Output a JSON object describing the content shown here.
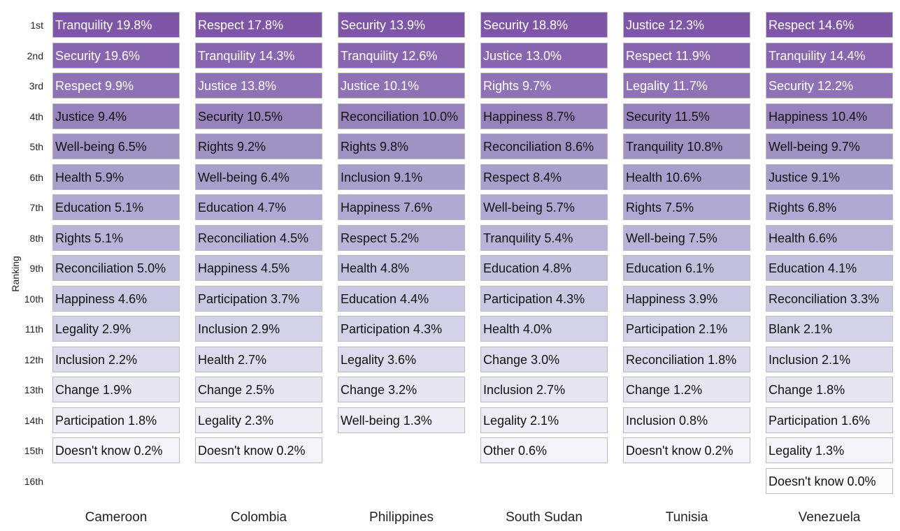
{
  "chart_data": {
    "type": "table",
    "title": "",
    "ylabel": "Ranking",
    "ranks": [
      "1st",
      "2nd",
      "3rd",
      "4th",
      "5th",
      "6th",
      "7th",
      "8th",
      "9th",
      "10th",
      "11th",
      "12th",
      "13th",
      "14th",
      "15th",
      "16th"
    ],
    "countries": [
      "Cameroon",
      "Colombia",
      "Philippines",
      "South Sudan",
      "Tunisia",
      "Venezuela"
    ],
    "series": [
      {
        "name": "Cameroon",
        "items": [
          {
            "label": "Tranquility",
            "value": 19.8
          },
          {
            "label": "Security",
            "value": 19.6
          },
          {
            "label": "Respect",
            "value": 9.9
          },
          {
            "label": "Justice",
            "value": 9.4
          },
          {
            "label": "Well-being",
            "value": 6.5
          },
          {
            "label": "Health",
            "value": 5.9
          },
          {
            "label": "Education",
            "value": 5.1
          },
          {
            "label": "Rights",
            "value": 5.1
          },
          {
            "label": "Reconciliation",
            "value": 5.0
          },
          {
            "label": "Happiness",
            "value": 4.6
          },
          {
            "label": "Legality",
            "value": 2.9
          },
          {
            "label": "Inclusion",
            "value": 2.2
          },
          {
            "label": "Change",
            "value": 1.9
          },
          {
            "label": "Participation",
            "value": 1.8
          },
          {
            "label": "Doesn't know",
            "value": 0.2
          }
        ]
      },
      {
        "name": "Colombia",
        "items": [
          {
            "label": "Respect",
            "value": 17.8
          },
          {
            "label": "Tranquility",
            "value": 14.3
          },
          {
            "label": "Justice",
            "value": 13.8
          },
          {
            "label": "Security",
            "value": 10.5
          },
          {
            "label": "Rights",
            "value": 9.2
          },
          {
            "label": "Well-being",
            "value": 6.4
          },
          {
            "label": "Education",
            "value": 4.7
          },
          {
            "label": "Reconciliation",
            "value": 4.5
          },
          {
            "label": "Happiness",
            "value": 4.5
          },
          {
            "label": "Participation",
            "value": 3.7
          },
          {
            "label": "Inclusion",
            "value": 2.9
          },
          {
            "label": "Health",
            "value": 2.7
          },
          {
            "label": "Change",
            "value": 2.5
          },
          {
            "label": "Legality",
            "value": 2.3
          },
          {
            "label": "Doesn't know",
            "value": 0.2
          }
        ]
      },
      {
        "name": "Philippines",
        "items": [
          {
            "label": "Security",
            "value": 13.9
          },
          {
            "label": "Tranquility",
            "value": 12.6
          },
          {
            "label": "Justice",
            "value": 10.1
          },
          {
            "label": "Reconciliation",
            "value": 10.0
          },
          {
            "label": "Rights",
            "value": 9.8
          },
          {
            "label": "Inclusion",
            "value": 9.1
          },
          {
            "label": "Happiness",
            "value": 7.6
          },
          {
            "label": "Respect",
            "value": 5.2
          },
          {
            "label": "Health",
            "value": 4.8
          },
          {
            "label": "Education",
            "value": 4.4
          },
          {
            "label": "Participation",
            "value": 4.3
          },
          {
            "label": "Legality",
            "value": 3.6
          },
          {
            "label": "Change",
            "value": 3.2
          },
          {
            "label": "Well-being",
            "value": 1.3
          }
        ]
      },
      {
        "name": "South Sudan",
        "items": [
          {
            "label": "Security",
            "value": 18.8
          },
          {
            "label": "Justice",
            "value": 13.0
          },
          {
            "label": "Rights",
            "value": 9.7
          },
          {
            "label": "Happiness",
            "value": 8.7
          },
          {
            "label": "Reconciliation",
            "value": 8.6
          },
          {
            "label": "Respect",
            "value": 8.4
          },
          {
            "label": "Well-being",
            "value": 5.7
          },
          {
            "label": "Tranquility",
            "value": 5.4
          },
          {
            "label": "Education",
            "value": 4.8
          },
          {
            "label": "Participation",
            "value": 4.3
          },
          {
            "label": "Health",
            "value": 4.0
          },
          {
            "label": "Change",
            "value": 3.0
          },
          {
            "label": "Inclusion",
            "value": 2.7
          },
          {
            "label": "Legality",
            "value": 2.1
          },
          {
            "label": "Other",
            "value": 0.6
          }
        ]
      },
      {
        "name": "Tunisia",
        "items": [
          {
            "label": "Justice",
            "value": 12.3
          },
          {
            "label": "Respect",
            "value": 11.9
          },
          {
            "label": "Legality",
            "value": 11.7
          },
          {
            "label": "Security",
            "value": 11.5
          },
          {
            "label": "Tranquility",
            "value": 10.8
          },
          {
            "label": "Health",
            "value": 10.6
          },
          {
            "label": "Rights",
            "value": 7.5
          },
          {
            "label": "Well-being",
            "value": 7.5
          },
          {
            "label": "Education",
            "value": 6.1
          },
          {
            "label": "Happiness",
            "value": 3.9
          },
          {
            "label": "Participation",
            "value": 2.1
          },
          {
            "label": "Reconciliation",
            "value": 1.8
          },
          {
            "label": "Change",
            "value": 1.2
          },
          {
            "label": "Inclusion",
            "value": 0.8
          },
          {
            "label": "Doesn't know",
            "value": 0.2
          }
        ]
      },
      {
        "name": "Venezuela",
        "items": [
          {
            "label": "Respect",
            "value": 14.6
          },
          {
            "label": "Tranquility",
            "value": 14.4
          },
          {
            "label": "Security",
            "value": 12.2
          },
          {
            "label": "Happiness",
            "value": 10.4
          },
          {
            "label": "Well-being",
            "value": 9.7
          },
          {
            "label": "Justice",
            "value": 9.1
          },
          {
            "label": "Rights",
            "value": 6.8
          },
          {
            "label": "Health",
            "value": 6.6
          },
          {
            "label": "Education",
            "value": 4.1
          },
          {
            "label": "Reconciliation",
            "value": 3.3
          },
          {
            "label": "Blank",
            "value": 2.1
          },
          {
            "label": "Inclusion",
            "value": 2.1
          },
          {
            "label": "Change",
            "value": 1.8
          },
          {
            "label": "Participation",
            "value": 1.6
          },
          {
            "label": "Legality",
            "value": 1.3
          },
          {
            "label": "Doesn't know",
            "value": 0.0
          }
        ]
      }
    ],
    "rank_colors": [
      "#7f55a8",
      "#8865ae",
      "#8f72b5",
      "#9882bc",
      "#a093c4",
      "#a69fcb",
      "#aea9d2",
      "#b7b4d8",
      "#c0bfde",
      "#c9c8e3",
      "#d2d2e8",
      "#dcdbed",
      "#e5e4f1",
      "#ededf6",
      "#f5f4fa",
      "#fbfbfd"
    ],
    "text_colors": [
      "#ffffff",
      "#ffffff",
      "#ffffff",
      "#111111",
      "#111111",
      "#111111",
      "#111111",
      "#111111",
      "#111111",
      "#111111",
      "#111111",
      "#111111",
      "#111111",
      "#111111",
      "#111111",
      "#111111"
    ]
  }
}
